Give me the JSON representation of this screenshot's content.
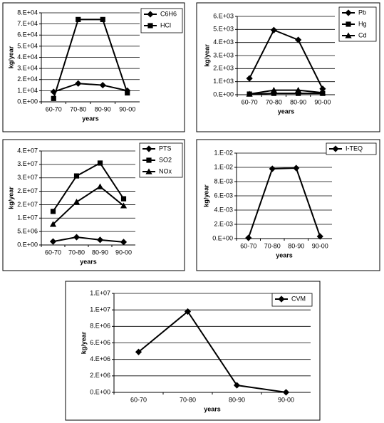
{
  "chart_data": [
    {
      "type": "line",
      "x_label": "years",
      "y_label": "kg/year",
      "categories": [
        "60-70",
        "70-80",
        "80-90",
        "90-00"
      ],
      "ylim": [
        0,
        80000
      ],
      "yticks": [
        {
          "value": 0,
          "label": "0.E+00"
        },
        {
          "value": 10000,
          "label": "1.E+04"
        },
        {
          "value": 20000,
          "label": "2.E+04"
        },
        {
          "value": 30000,
          "label": "3.E+04"
        },
        {
          "value": 40000,
          "label": "4.E+04"
        },
        {
          "value": 50000,
          "label": "5.E+04"
        },
        {
          "value": 60000,
          "label": "6.E+04"
        },
        {
          "value": 70000,
          "label": "7.E+04"
        },
        {
          "value": 80000,
          "label": "8.E+04"
        }
      ],
      "grid": true,
      "series": [
        {
          "name": "C6H6",
          "color": "#000000",
          "marker": "diamond",
          "values": [
            9000,
            16500,
            15000,
            10000
          ]
        },
        {
          "name": "HCl",
          "color": "#000000",
          "marker": "square",
          "values": [
            3000,
            74000,
            74000,
            8000
          ]
        }
      ]
    },
    {
      "type": "line",
      "x_label": "years",
      "y_label": "kg/year",
      "categories": [
        "60-70",
        "70-80",
        "80-90",
        "90-00"
      ],
      "ylim": [
        0,
        6000
      ],
      "yticks": [
        {
          "value": 0,
          "label": "0.E+00"
        },
        {
          "value": 1000,
          "label": "1.E+03"
        },
        {
          "value": 2000,
          "label": "2.E+03"
        },
        {
          "value": 3000,
          "label": "3.E+03"
        },
        {
          "value": 4000,
          "label": "4.E+03"
        },
        {
          "value": 5000,
          "label": "5.E+03"
        },
        {
          "value": 6000,
          "label": "6.E+03"
        }
      ],
      "grid": true,
      "series": [
        {
          "name": "Pb",
          "color": "#000000",
          "marker": "diamond",
          "values": [
            1250,
            4950,
            4200,
            450
          ]
        },
        {
          "name": "Hg",
          "color": "#000000",
          "marker": "square",
          "values": [
            50,
            100,
            100,
            100
          ]
        },
        {
          "name": "Cd",
          "color": "#000000",
          "marker": "triangle",
          "values": [
            50,
            350,
            350,
            150
          ]
        }
      ]
    },
    {
      "type": "line",
      "x_label": "years",
      "y_label": "kg/year",
      "categories": [
        "60-70",
        "70-80",
        "80-90",
        "90-00"
      ],
      "ylim": [
        0,
        35000000
      ],
      "yticks": [
        {
          "value": 0,
          "label": "0.E+00"
        },
        {
          "value": 5000000,
          "label": "5.E+06"
        },
        {
          "value": 10000000,
          "label": "1.E+07"
        },
        {
          "value": 15000000,
          "label": "2.E+07"
        },
        {
          "value": 20000000,
          "label": "2.E+07"
        },
        {
          "value": 25000000,
          "label": "3.E+07"
        },
        {
          "value": 30000000,
          "label": "3.E+07"
        },
        {
          "value": 35000000,
          "label": "4.E+07"
        }
      ],
      "grid": true,
      "series": [
        {
          "name": "PTS",
          "color": "#000000",
          "marker": "diamond",
          "values": [
            1300000,
            2900000,
            1900000,
            1100000
          ]
        },
        {
          "name": "SO2",
          "color": "#000000",
          "marker": "square",
          "values": [
            12500000,
            25700000,
            30500000,
            17200000
          ]
        },
        {
          "name": "NOx",
          "color": "#000000",
          "marker": "triangle",
          "values": [
            7700000,
            16000000,
            21700000,
            14600000
          ]
        }
      ]
    },
    {
      "type": "line",
      "x_label": "years",
      "y_label": "kg/year",
      "categories": [
        "60-70",
        "70-80",
        "80-90",
        "90-00"
      ],
      "ylim": [
        0,
        0.012
      ],
      "yticks": [
        {
          "value": 0,
          "label": "0.E+00"
        },
        {
          "value": 0.002,
          "label": "2.E-03"
        },
        {
          "value": 0.004,
          "label": "4.E-03"
        },
        {
          "value": 0.006,
          "label": "6.E-03"
        },
        {
          "value": 0.008,
          "label": "8.E-03"
        },
        {
          "value": 0.01,
          "label": "1.E-02"
        },
        {
          "value": 0.012,
          "label": "1.E-02"
        }
      ],
      "grid": true,
      "series": [
        {
          "name": "I-TEQ",
          "color": "#000000",
          "marker": "diamond",
          "values": [
            0.0001,
            0.0098,
            0.0099,
            0.0003
          ]
        }
      ]
    },
    {
      "type": "line",
      "x_label": "years",
      "y_label": "kg/year",
      "categories": [
        "60-70",
        "70-80",
        "80-90",
        "90-00"
      ],
      "ylim": [
        0,
        12000000
      ],
      "yticks": [
        {
          "value": 0,
          "label": "0.E+00"
        },
        {
          "value": 2000000,
          "label": "2.E+06"
        },
        {
          "value": 4000000,
          "label": "4.E+06"
        },
        {
          "value": 6000000,
          "label": "6.E+06"
        },
        {
          "value": 8000000,
          "label": "8.E+06"
        },
        {
          "value": 10000000,
          "label": "1.E+07"
        },
        {
          "value": 12000000,
          "label": "1.E+07"
        }
      ],
      "grid": true,
      "series": [
        {
          "name": "CVM",
          "color": "#000000",
          "marker": "diamond",
          "values": [
            4900000,
            9800000,
            860000,
            10000
          ]
        }
      ]
    }
  ]
}
